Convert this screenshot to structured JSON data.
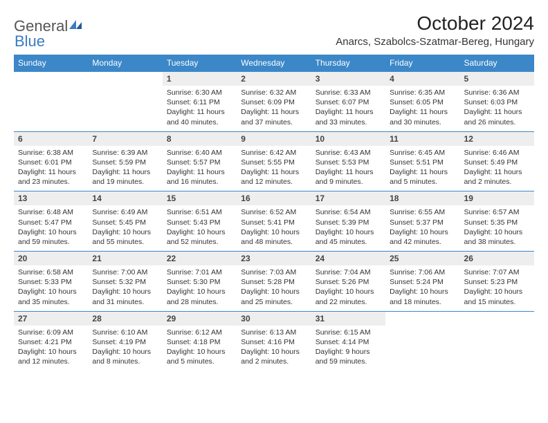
{
  "brand": {
    "part1": "General",
    "part2": "Blue"
  },
  "title": "October 2024",
  "location": "Anarcs, Szabolcs-Szatmar-Bereg, Hungary",
  "colors": {
    "header_bg": "#3b87c8",
    "header_text": "#ffffff",
    "daynum_bg": "#eeeeee",
    "border": "#3b87c8",
    "text": "#333333",
    "brand_blue": "#3b7bbf"
  },
  "weekdays": [
    "Sunday",
    "Monday",
    "Tuesday",
    "Wednesday",
    "Thursday",
    "Friday",
    "Saturday"
  ],
  "weeks": [
    [
      null,
      null,
      {
        "n": "1",
        "sr": "6:30 AM",
        "ss": "6:11 PM",
        "dl": "11 hours and 40 minutes."
      },
      {
        "n": "2",
        "sr": "6:32 AM",
        "ss": "6:09 PM",
        "dl": "11 hours and 37 minutes."
      },
      {
        "n": "3",
        "sr": "6:33 AM",
        "ss": "6:07 PM",
        "dl": "11 hours and 33 minutes."
      },
      {
        "n": "4",
        "sr": "6:35 AM",
        "ss": "6:05 PM",
        "dl": "11 hours and 30 minutes."
      },
      {
        "n": "5",
        "sr": "6:36 AM",
        "ss": "6:03 PM",
        "dl": "11 hours and 26 minutes."
      }
    ],
    [
      {
        "n": "6",
        "sr": "6:38 AM",
        "ss": "6:01 PM",
        "dl": "11 hours and 23 minutes."
      },
      {
        "n": "7",
        "sr": "6:39 AM",
        "ss": "5:59 PM",
        "dl": "11 hours and 19 minutes."
      },
      {
        "n": "8",
        "sr": "6:40 AM",
        "ss": "5:57 PM",
        "dl": "11 hours and 16 minutes."
      },
      {
        "n": "9",
        "sr": "6:42 AM",
        "ss": "5:55 PM",
        "dl": "11 hours and 12 minutes."
      },
      {
        "n": "10",
        "sr": "6:43 AM",
        "ss": "5:53 PM",
        "dl": "11 hours and 9 minutes."
      },
      {
        "n": "11",
        "sr": "6:45 AM",
        "ss": "5:51 PM",
        "dl": "11 hours and 5 minutes."
      },
      {
        "n": "12",
        "sr": "6:46 AM",
        "ss": "5:49 PM",
        "dl": "11 hours and 2 minutes."
      }
    ],
    [
      {
        "n": "13",
        "sr": "6:48 AM",
        "ss": "5:47 PM",
        "dl": "10 hours and 59 minutes."
      },
      {
        "n": "14",
        "sr": "6:49 AM",
        "ss": "5:45 PM",
        "dl": "10 hours and 55 minutes."
      },
      {
        "n": "15",
        "sr": "6:51 AM",
        "ss": "5:43 PM",
        "dl": "10 hours and 52 minutes."
      },
      {
        "n": "16",
        "sr": "6:52 AM",
        "ss": "5:41 PM",
        "dl": "10 hours and 48 minutes."
      },
      {
        "n": "17",
        "sr": "6:54 AM",
        "ss": "5:39 PM",
        "dl": "10 hours and 45 minutes."
      },
      {
        "n": "18",
        "sr": "6:55 AM",
        "ss": "5:37 PM",
        "dl": "10 hours and 42 minutes."
      },
      {
        "n": "19",
        "sr": "6:57 AM",
        "ss": "5:35 PM",
        "dl": "10 hours and 38 minutes."
      }
    ],
    [
      {
        "n": "20",
        "sr": "6:58 AM",
        "ss": "5:33 PM",
        "dl": "10 hours and 35 minutes."
      },
      {
        "n": "21",
        "sr": "7:00 AM",
        "ss": "5:32 PM",
        "dl": "10 hours and 31 minutes."
      },
      {
        "n": "22",
        "sr": "7:01 AM",
        "ss": "5:30 PM",
        "dl": "10 hours and 28 minutes."
      },
      {
        "n": "23",
        "sr": "7:03 AM",
        "ss": "5:28 PM",
        "dl": "10 hours and 25 minutes."
      },
      {
        "n": "24",
        "sr": "7:04 AM",
        "ss": "5:26 PM",
        "dl": "10 hours and 22 minutes."
      },
      {
        "n": "25",
        "sr": "7:06 AM",
        "ss": "5:24 PM",
        "dl": "10 hours and 18 minutes."
      },
      {
        "n": "26",
        "sr": "7:07 AM",
        "ss": "5:23 PM",
        "dl": "10 hours and 15 minutes."
      }
    ],
    [
      {
        "n": "27",
        "sr": "6:09 AM",
        "ss": "4:21 PM",
        "dl": "10 hours and 12 minutes."
      },
      {
        "n": "28",
        "sr": "6:10 AM",
        "ss": "4:19 PM",
        "dl": "10 hours and 8 minutes."
      },
      {
        "n": "29",
        "sr": "6:12 AM",
        "ss": "4:18 PM",
        "dl": "10 hours and 5 minutes."
      },
      {
        "n": "30",
        "sr": "6:13 AM",
        "ss": "4:16 PM",
        "dl": "10 hours and 2 minutes."
      },
      {
        "n": "31",
        "sr": "6:15 AM",
        "ss": "4:14 PM",
        "dl": "9 hours and 59 minutes."
      },
      null,
      null
    ]
  ],
  "labels": {
    "sunrise": "Sunrise:",
    "sunset": "Sunset:",
    "daylight": "Daylight:"
  }
}
